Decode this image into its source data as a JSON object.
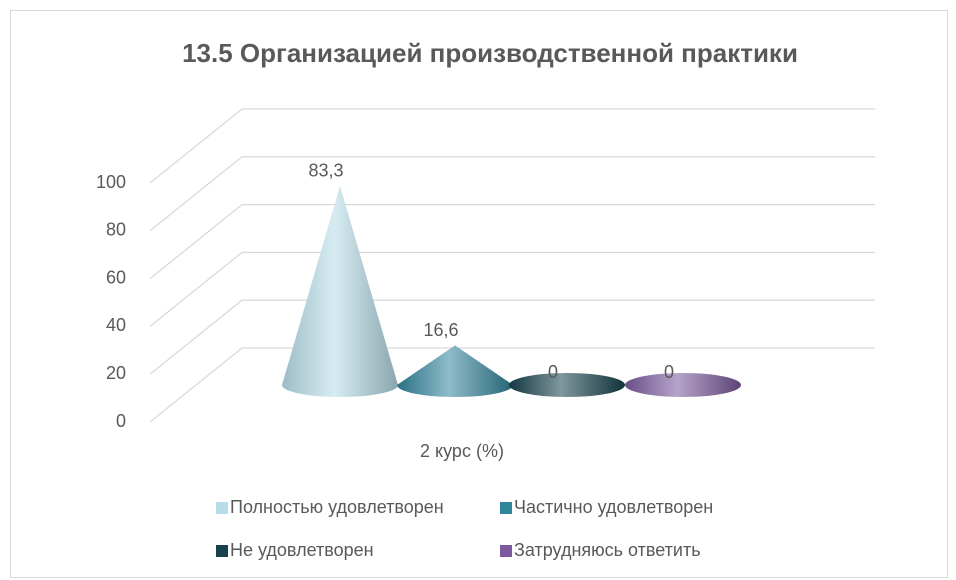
{
  "chart_data": {
    "type": "cone",
    "title": "13.5 Организацией производственной практики",
    "categories": [
      "2 курс (%)"
    ],
    "series": [
      {
        "name": "Полностью удовлетворен",
        "color": "#b7dde8",
        "values": [
          83.3
        ],
        "value_labels": [
          "83,3"
        ]
      },
      {
        "name": "Частично удовлетворен",
        "color": "#31859c",
        "values": [
          16.6
        ],
        "value_labels": [
          "16,6"
        ]
      },
      {
        "name": "Не удовлетворен",
        "color": "#17424d",
        "values": [
          0
        ],
        "value_labels": [
          "0"
        ]
      },
      {
        "name": "Затрудняюсь ответить",
        "color": "#7b5a9e",
        "values": [
          0
        ],
        "value_labels": [
          "0"
        ]
      }
    ],
    "ylim": [
      0,
      100
    ],
    "yticks": [
      0,
      20,
      40,
      60,
      80,
      100
    ],
    "grid": true
  }
}
